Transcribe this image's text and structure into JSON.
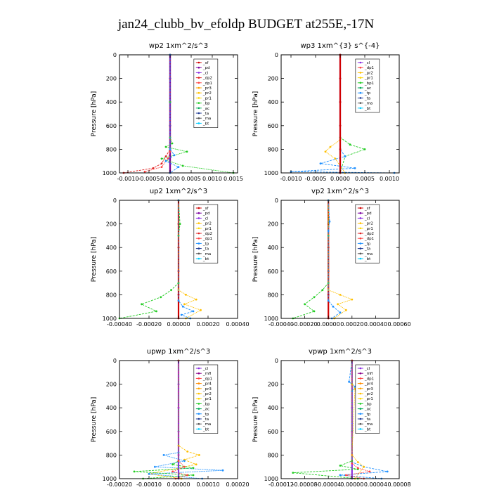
{
  "figure": {
    "title": "jan24_clubb_bv_efoldp  BUDGET at255E,-17N"
  },
  "colors": {
    "_sf": "#d00000",
    "_pd": "#7b00a0",
    "_cl": "#8a2be2",
    "_dp2": "#e02020",
    "_dp1": "#ff4040",
    "_pr3": "#ffa500",
    "_pr2": "#ffc000",
    "_pr1": "#ffd700",
    "_bp": "#22cc22",
    "_bp1": "#22cc22",
    "_ac": "#00aa55",
    "_tp": "#1e90ff",
    "_ta": "#1f3a93",
    "_ma": "#555555",
    "_bt": "#00ccff",
    "_mfl": "#8b008b",
    "_dp4": "#ff3030",
    "_pr4": "#ff8c00"
  },
  "chart_data": [
    {
      "type": "line",
      "title": "wp2   1xm^2/s^3",
      "ylabel": "Pressure  [hPa]",
      "xlim": [
        -0.0012,
        0.0016
      ],
      "ylim": [
        1000,
        0
      ],
      "xticks": [
        -0.001,
        -0.0005,
        0.0,
        0.0005,
        0.001,
        0.0015
      ],
      "xtick_labels": [
        "-0.0010",
        "-0.0005",
        "0.0000",
        "0.0005",
        "0.0010",
        "0.0015"
      ],
      "yticks": [
        0,
        200,
        400,
        600,
        800,
        1000
      ],
      "ytick_labels": [
        "0",
        "200",
        "400",
        "600",
        "800",
        "1000"
      ],
      "legend": [
        "_sf",
        "_pd",
        "_cl",
        "_dp2",
        "_dp1",
        "_pr3",
        "_pr2",
        "_pr1",
        "_bp",
        "_ac",
        "_ta",
        "_ma",
        "_bt"
      ],
      "series": [
        {
          "key": "_sf",
          "x": [
            0,
            0,
            0,
            0,
            0,
            0
          ],
          "y": [
            0,
            200,
            400,
            600,
            800,
            1000
          ]
        },
        {
          "key": "_pd",
          "x": [
            0,
            0,
            0,
            0,
            0,
            0
          ],
          "y": [
            0,
            200,
            400,
            600,
            800,
            1000
          ]
        },
        {
          "key": "_bp",
          "x": [
            0,
            0,
            0,
            5e-05,
            -0.0001,
            0.0004,
            -0.0002,
            0.0003,
            0.0015
          ],
          "y": [
            0,
            400,
            700,
            750,
            780,
            820,
            880,
            940,
            1000
          ]
        },
        {
          "key": "_dp2",
          "x": [
            0,
            0,
            -0.0001,
            -0.0002,
            -0.0004,
            -0.0011
          ],
          "y": [
            0,
            800,
            860,
            920,
            960,
            1000
          ]
        },
        {
          "key": "_dp1",
          "x": [
            0,
            0,
            -5e-05,
            -0.0002,
            -0.0006
          ],
          "y": [
            0,
            820,
            880,
            950,
            990
          ]
        },
        {
          "key": "_tp",
          "x": [
            0,
            0,
            0.0001,
            -0.0001,
            0.0002,
            0
          ],
          "y": [
            0,
            800,
            850,
            900,
            950,
            1000
          ]
        }
      ]
    },
    {
      "type": "line",
      "title": "wp3   1xm^{3} s^{-4}",
      "ylabel": "Pressure  [hPa]",
      "xlim": [
        -0.0012,
        0.0012
      ],
      "ylim": [
        1000,
        0
      ],
      "xticks": [
        -0.001,
        -0.0005,
        0.0,
        0.0005,
        0.001
      ],
      "xtick_labels": [
        "-0.0010",
        "-0.0005",
        "0.0000",
        "0.0005",
        "0.0010"
      ],
      "yticks": [
        0,
        200,
        400,
        600,
        800,
        1000
      ],
      "ytick_labels": [
        "0",
        "200",
        "400",
        "600",
        "800",
        "1000"
      ],
      "legend": [
        "_cl",
        "_dp1",
        "_pr2",
        "_pr1",
        "_bp1",
        "_ac",
        "_tp",
        "_ta",
        "_ma",
        "_bt"
      ],
      "series": [
        {
          "key": "_cl",
          "x": [
            0,
            0,
            0,
            0,
            0,
            0
          ],
          "y": [
            0,
            200,
            400,
            600,
            800,
            1000
          ]
        },
        {
          "key": "_bp1",
          "x": [
            0,
            0,
            0.0002,
            0.0005,
            0.0001,
            0
          ],
          "y": [
            0,
            700,
            760,
            800,
            860,
            1000
          ]
        },
        {
          "key": "_pr2",
          "x": [
            0,
            0,
            -0.0002,
            -0.0003,
            -0.0001,
            0.0001
          ],
          "y": [
            0,
            720,
            780,
            820,
            880,
            1000
          ]
        },
        {
          "key": "_tp",
          "x": [
            0,
            0,
            0.0001,
            -0.0004,
            0.0003,
            -0.001,
            0.0011
          ],
          "y": [
            0,
            800,
            860,
            920,
            960,
            990,
            1000
          ]
        },
        {
          "key": "_sf",
          "x": [
            0,
            0,
            0,
            0,
            0,
            0
          ],
          "y": [
            0,
            200,
            400,
            600,
            800,
            1000
          ]
        }
      ]
    },
    {
      "type": "line",
      "title": "up2   1xm^2/s^3",
      "ylabel": "Pressure  [hPa]",
      "xlim": [
        -0.0004,
        0.0004
      ],
      "ylim": [
        1000,
        0
      ],
      "xticks": [
        -0.0004,
        -0.0002,
        0.0,
        0.0002,
        0.0004
      ],
      "xtick_labels": [
        "-0.00040",
        "-0.00020",
        "0.00000",
        "0.00020",
        "0.00040"
      ],
      "yticks": [
        0,
        200,
        400,
        600,
        800,
        1000
      ],
      "ytick_labels": [
        "0",
        "200",
        "400",
        "600",
        "800",
        "1000"
      ],
      "legend": [
        "_sf",
        "_pd",
        "_cl",
        "_pr2",
        "_pr1",
        "_dp2",
        "_dp1",
        "_tp",
        "_ta",
        "_ma",
        "_bt"
      ],
      "series": [
        {
          "key": "_sf",
          "x": [
            0,
            0,
            0,
            0,
            0,
            0
          ],
          "y": [
            0,
            200,
            400,
            600,
            800,
            1000
          ]
        },
        {
          "key": "_bp",
          "x": [
            0,
            1e-05,
            0,
            0,
            -5e-05,
            -0.00012,
            -0.00025,
            -0.00015,
            -0.0004
          ],
          "y": [
            0,
            200,
            300,
            700,
            760,
            820,
            880,
            940,
            1000
          ]
        },
        {
          "key": "_pr2",
          "x": [
            0,
            0,
            5e-05,
            0.00012,
            4e-05,
            0.00015,
            5e-05
          ],
          "y": [
            0,
            760,
            800,
            840,
            880,
            930,
            1000
          ]
        },
        {
          "key": "_tp",
          "x": [
            0,
            0,
            3e-05,
            0.0001,
            2e-05,
            8e-05
          ],
          "y": [
            0,
            850,
            900,
            940,
            970,
            1000
          ]
        }
      ]
    },
    {
      "type": "line",
      "title": "vp2   1xm^2/s^3",
      "ylabel": "Pressure  [hPa]",
      "xlim": [
        -0.0004,
        0.0006
      ],
      "ylim": [
        1000,
        0
      ],
      "xticks": [
        -0.0004,
        -0.0002,
        0.0,
        0.0002,
        0.0004,
        0.0006
      ],
      "xtick_labels": [
        "-0.00040",
        "-0.00020",
        "0.00000",
        "0.00020",
        "0.00040",
        "0.00060"
      ],
      "yticks": [
        0,
        200,
        400,
        600,
        800,
        1000
      ],
      "ytick_labels": [
        "0",
        "200",
        "400",
        "600",
        "800",
        "1000"
      ],
      "legend": [
        "_sf",
        "_pd",
        "_cl",
        "_pr2",
        "_pr1",
        "_dp2",
        "_dp1",
        "_tp",
        "_ta",
        "_ma",
        "_bt"
      ],
      "series": [
        {
          "key": "_sf",
          "x": [
            0,
            0,
            0,
            0,
            0,
            0
          ],
          "y": [
            0,
            200,
            400,
            600,
            800,
            1000
          ]
        },
        {
          "key": "_bp",
          "x": [
            0,
            0,
            0,
            -5e-05,
            -0.00012,
            -0.0002,
            -0.00012,
            -0.0003
          ],
          "y": [
            0,
            300,
            700,
            760,
            820,
            880,
            940,
            1000
          ]
        },
        {
          "key": "_pr2",
          "x": [
            0,
            0,
            0.0001,
            0.0002,
            8e-05,
            0.00015,
            5e-05
          ],
          "y": [
            0,
            760,
            800,
            840,
            880,
            930,
            1000
          ]
        },
        {
          "key": "_tp",
          "x": [
            0,
            1e-05,
            0,
            0,
            4e-05,
            0.0001,
            3e-05
          ],
          "y": [
            0,
            180,
            260,
            850,
            900,
            950,
            1000
          ]
        }
      ]
    },
    {
      "type": "line",
      "title": "upwp   1xm^2/s^3",
      "ylabel": "Pressure  [hPa]",
      "xlim": [
        -0.0002,
        0.0002
      ],
      "ylim": [
        1000,
        0
      ],
      "xticks": [
        -0.0002,
        -0.0001,
        0.0,
        0.0001,
        0.0002
      ],
      "xtick_labels": [
        "-0.00020",
        "-0.00010",
        "0.00000",
        "0.00010",
        "0.00020"
      ],
      "yticks": [
        0,
        200,
        400,
        600,
        800,
        1000
      ],
      "ytick_labels": [
        "0",
        "200",
        "400",
        "600",
        "800",
        "1000"
      ],
      "legend": [
        "_cl",
        "_mfl",
        "_dp1",
        "_pr4",
        "_pr3",
        "_pr2",
        "_pr1",
        "_bp",
        "_ac",
        "_tp",
        "_ta",
        "_ma",
        "_bt"
      ],
      "series": [
        {
          "key": "_cl",
          "x": [
            0,
            0,
            0,
            0,
            0,
            0
          ],
          "y": [
            0,
            200,
            400,
            600,
            800,
            1000
          ]
        },
        {
          "key": "_pr2",
          "x": [
            0,
            0,
            3e-05,
            7e-05,
            2e-05,
            6e-05,
            -0.0001,
            1e-05
          ],
          "y": [
            0,
            720,
            770,
            800,
            840,
            880,
            960,
            1000
          ]
        },
        {
          "key": "_tp",
          "x": [
            0,
            0,
            -5e-05,
            2e-05,
            -8e-05,
            0.00015,
            -0.0001,
            8e-05
          ],
          "y": [
            0,
            780,
            800,
            850,
            900,
            930,
            960,
            1000
          ]
        },
        {
          "key": "_bp",
          "x": [
            0,
            0,
            -2e-05,
            5e-05,
            -0.00015,
            5e-05,
            -0.00012
          ],
          "y": [
            0,
            850,
            880,
            910,
            940,
            970,
            1000
          ]
        },
        {
          "key": "_dp1",
          "x": [
            0,
            0,
            2e-05,
            -2e-05,
            3e-05,
            -1e-05
          ],
          "y": [
            0,
            850,
            900,
            940,
            970,
            1000
          ]
        }
      ]
    },
    {
      "type": "line",
      "title": "vpwp   1xm^2/s^3",
      "ylabel": "Pressure  [hPa]",
      "xlim": [
        -0.00012,
        8e-05
      ],
      "ylim": [
        1000,
        0
      ],
      "xticks": [
        -0.00012,
        -8e-05,
        -4e-05,
        0.0,
        4e-05,
        8e-05
      ],
      "xtick_labels": [
        "-0.00012",
        "-0.00008",
        "-0.00004",
        "0.00000",
        "0.00004",
        "0.00008"
      ],
      "yticks": [
        0,
        200,
        400,
        600,
        800,
        1000
      ],
      "ytick_labels": [
        "0",
        "200",
        "400",
        "600",
        "800",
        "1000"
      ],
      "legend": [
        "_cl",
        "_mfl",
        "_dp1",
        "_pr4",
        "_pr3",
        "_pr2",
        "_pr1",
        "_bp",
        "_ac",
        "_tp",
        "_ta",
        "_ma",
        "_bt"
      ],
      "series": [
        {
          "key": "_cl",
          "x": [
            0,
            0,
            0,
            0,
            0,
            0
          ],
          "y": [
            0,
            200,
            400,
            600,
            800,
            1000
          ]
        },
        {
          "key": "_tp",
          "x": [
            0,
            -5e-06,
            0,
            5e-06,
            0,
            0,
            2e-05,
            6e-05,
            -2e-05,
            5e-05
          ],
          "y": [
            0,
            180,
            200,
            220,
            260,
            860,
            900,
            940,
            970,
            1000
          ]
        },
        {
          "key": "_pr2",
          "x": [
            0,
            0,
            5e-06,
            0,
            1e-05,
            2e-05,
            5e-06
          ],
          "y": [
            0,
            200,
            240,
            800,
            860,
            900,
            1000
          ]
        },
        {
          "key": "_bp",
          "x": [
            0,
            0,
            -2e-05,
            1e-05,
            -0.0001,
            1e-05
          ],
          "y": [
            0,
            850,
            890,
            920,
            950,
            1000
          ]
        },
        {
          "key": "_dp1",
          "x": [
            0,
            0,
            1e-05,
            3e-05,
            -1e-05,
            2e-05
          ],
          "y": [
            0,
            870,
            910,
            940,
            970,
            1000
          ]
        }
      ]
    }
  ]
}
